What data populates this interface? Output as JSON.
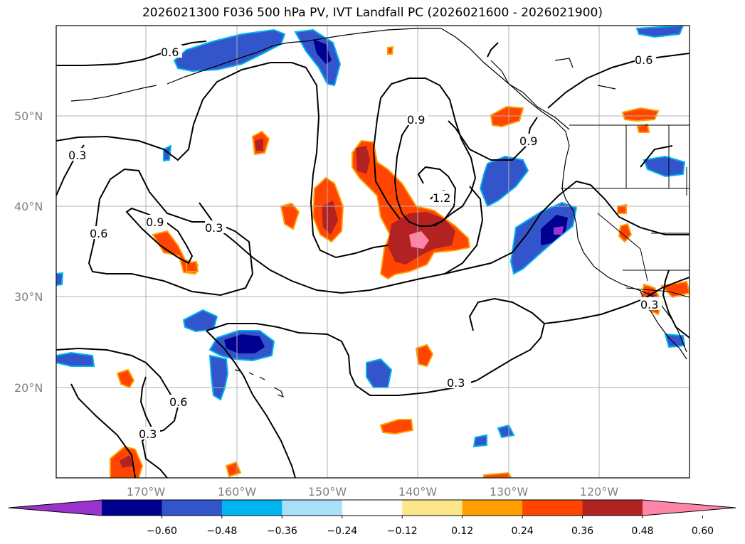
{
  "title": "2026021300 F036 500 hPa PV, IVT Landfall PC (2026021600 - 2026021900)",
  "latitude_labels": [
    "50°N",
    "40°N",
    "30°N",
    "20°N"
  ],
  "longitude_labels": [
    "170°W",
    "160°W",
    "150°W",
    "140°W",
    "130°W",
    "120°W"
  ],
  "contour_labels": [
    "0.6",
    "0.3",
    "0.6",
    "0.9",
    "0.3",
    "0.9",
    "1.2",
    "0.9",
    "0.6",
    "0.3",
    "0.6",
    "0.3",
    "0.3"
  ],
  "colorbar": {
    "tick_labels": [
      "−0.60",
      "−0.48",
      "−0.36",
      "−0.24",
      "−0.12",
      "0.12",
      "0.24",
      "0.36",
      "0.48",
      "0.60"
    ],
    "bin_colors": [
      "#9933cc",
      "#000090",
      "#3355cc",
      "#00b4f0",
      "#aadff8",
      "#ffffff",
      "#fce68a",
      "#ffa000",
      "#ff4500",
      "#b22222",
      "#ff85a8"
    ]
  }
}
